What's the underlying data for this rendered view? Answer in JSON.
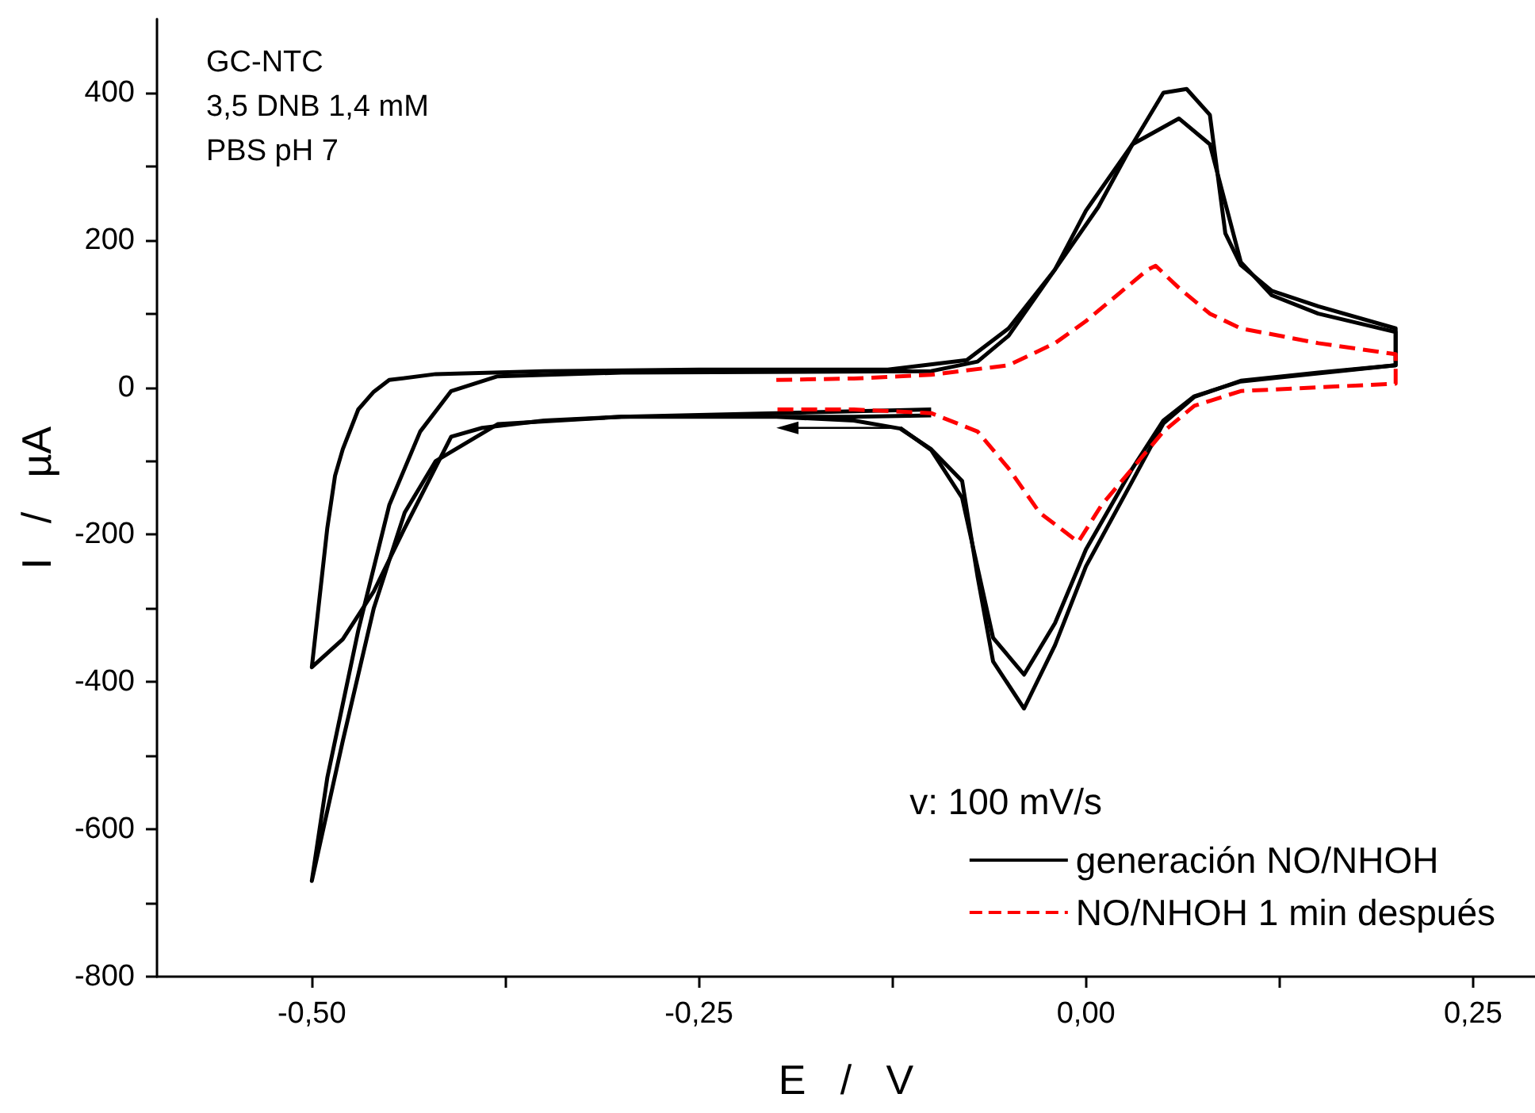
{
  "chart_data": {
    "type": "line",
    "xlabel": "E   /   V",
    "ylabel": "I   /   µA",
    "xlim": [
      -0.6,
      0.29
    ],
    "ylim": [
      -800,
      500
    ],
    "xticks": [
      {
        "value": -0.5,
        "label": "-0,50"
      },
      {
        "value": -0.375,
        "label": null
      },
      {
        "value": -0.25,
        "label": "-0,25"
      },
      {
        "value": -0.125,
        "label": null
      },
      {
        "value": 0,
        "label": "0,00"
      },
      {
        "value": 0.125,
        "label": null
      },
      {
        "value": 0.25,
        "label": "0,25"
      }
    ],
    "yticks": [
      -800,
      {
        "value": -700,
        "label": null
      },
      -600,
      {
        "value": -500,
        "label": null
      },
      -400,
      {
        "value": -300,
        "label": null
      },
      -200,
      {
        "value": -100,
        "label": null
      },
      0,
      {
        "value": 100,
        "label": null
      },
      200,
      {
        "value": 300,
        "label": null
      },
      400
    ],
    "marker": "none",
    "legend": "bottom right",
    "legend_title": "v: 100 mV/s",
    "annotations": [
      "GC-NTC",
      "3,5 DNB 1,4 mM",
      "PBS pH 7"
    ],
    "series": [
      {
        "name": "generación NO/NHOH",
        "color": "#000000",
        "line_style": "solid",
        "x": [
          -0.1,
          -0.15,
          -0.2,
          -0.3,
          -0.35,
          -0.39,
          -0.41,
          -0.44,
          -0.46,
          -0.48,
          -0.5,
          -0.49,
          -0.485,
          -0.48,
          -0.47,
          -0.46,
          -0.45,
          -0.42,
          -0.35,
          -0.25,
          -0.128,
          -0.077,
          -0.05,
          -0.02,
          0.008,
          0.03,
          0.05,
          0.065,
          0.08,
          0.09,
          0.1,
          0.12,
          0.15,
          0.2,
          0.2,
          0.15,
          0.1,
          0.07,
          0.05,
          0.03,
          0.0,
          -0.02,
          -0.04,
          -0.06,
          -0.07,
          -0.08,
          -0.1,
          -0.12,
          -0.15,
          -0.2,
          -0.25
        ],
        "values": [
          -38,
          -40,
          -40,
          -40,
          -45,
          -55,
          -67,
          -191,
          -277,
          -342,
          -380,
          -191,
          -120,
          -84,
          -30,
          -6,
          10,
          18,
          22,
          24,
          24,
          37,
          80,
          160,
          245,
          330,
          400,
          405,
          370,
          209,
          166,
          131,
          110,
          80,
          30,
          20,
          9,
          -13,
          -49,
          -127,
          -243,
          -350,
          -436,
          -372,
          -257,
          -127,
          -84,
          -56,
          -45,
          -40,
          -40
        ]
      },
      {
        "color": "#000000",
        "line_style": "solid",
        "x": [
          -0.1,
          -0.2,
          -0.3,
          -0.38,
          -0.42,
          -0.44,
          -0.46,
          -0.48,
          -0.5,
          -0.49,
          -0.47,
          -0.45,
          -0.43,
          -0.41,
          -0.38,
          -0.3,
          -0.1,
          -0.07,
          -0.05,
          -0.02,
          0.0,
          0.03,
          0.06,
          0.08,
          0.1,
          0.12,
          0.15,
          0.2,
          0.2,
          0.1,
          0.07,
          0.05,
          0.03,
          0.0,
          -0.02,
          -0.04,
          -0.06,
          -0.08,
          -0.1,
          -0.12
        ],
        "values": [
          -30,
          -35,
          -40,
          -50,
          -100,
          -170,
          -300,
          -480,
          -670,
          -530,
          -330,
          -160,
          -60,
          -5,
          15,
          20,
          22,
          35,
          70,
          160,
          240,
          330,
          365,
          330,
          170,
          125,
          100,
          75,
          30,
          8,
          -12,
          -45,
          -110,
          -220,
          -320,
          -390,
          -340,
          -150,
          -85,
          -55
        ]
      },
      {
        "name": "NO/NHOH 1 min después",
        "color": "#ff0000",
        "line_style": "dashed",
        "x": [
          -0.2,
          -0.15,
          -0.1,
          -0.05,
          -0.02,
          0.0,
          0.02,
          0.04,
          0.045,
          0.06,
          0.08,
          0.1,
          0.15,
          0.2,
          0.2,
          0.15,
          0.1,
          0.07,
          0.05,
          0.03,
          0.01,
          -0.005,
          -0.03,
          -0.05,
          -0.07,
          -0.1,
          -0.15,
          -0.2
        ],
        "values": [
          10,
          12,
          17,
          30,
          60,
          90,
          125,
          160,
          165,
          135,
          100,
          80,
          60,
          45,
          5,
          0,
          -5,
          -25,
          -60,
          -110,
          -160,
          -210,
          -170,
          -110,
          -60,
          -35,
          -30,
          -30
        ]
      }
    ]
  }
}
